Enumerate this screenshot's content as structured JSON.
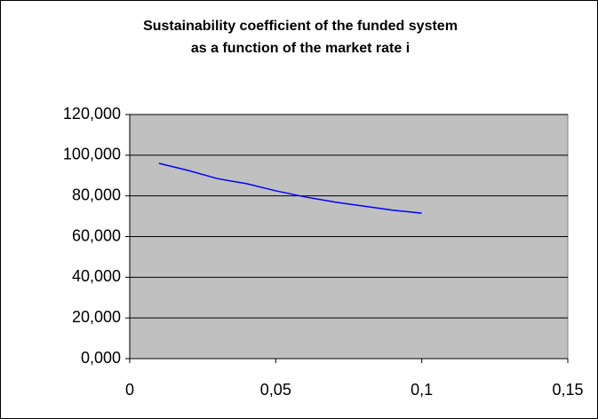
{
  "chart_data": {
    "type": "line",
    "title": [
      "Sustainability coefficient of the funded system",
      "as a function of the market rate i"
    ],
    "x": [
      0.01,
      0.02,
      0.03,
      0.04,
      0.05,
      0.06,
      0.07,
      0.08,
      0.09,
      0.1
    ],
    "series": [
      {
        "color": "#0000ff",
        "values": [
          96,
          92.5,
          88.5,
          86,
          82.5,
          79.5,
          77,
          75,
          73,
          71.5
        ]
      }
    ],
    "xlim": [
      0,
      0.15
    ],
    "xticks": [
      0,
      {
        "value": 0.05,
        "label": "0,05"
      },
      {
        "value": 0.1,
        "label": "0,1"
      },
      {
        "value": 0.15,
        "label": "0,15"
      }
    ],
    "ylim": [
      0,
      120
    ],
    "yticks": [
      {
        "value": 0,
        "label": "0,000"
      },
      {
        "value": 20,
        "label": "20,000"
      },
      {
        "value": 40,
        "label": "40,000"
      },
      {
        "value": 60,
        "label": "60,000"
      },
      {
        "value": 80,
        "label": "80,000"
      },
      {
        "value": 100,
        "label": "100,000"
      },
      {
        "value": 120,
        "label": "120,000"
      }
    ],
    "grid": true,
    "plot_background": "#c0c0c0"
  }
}
